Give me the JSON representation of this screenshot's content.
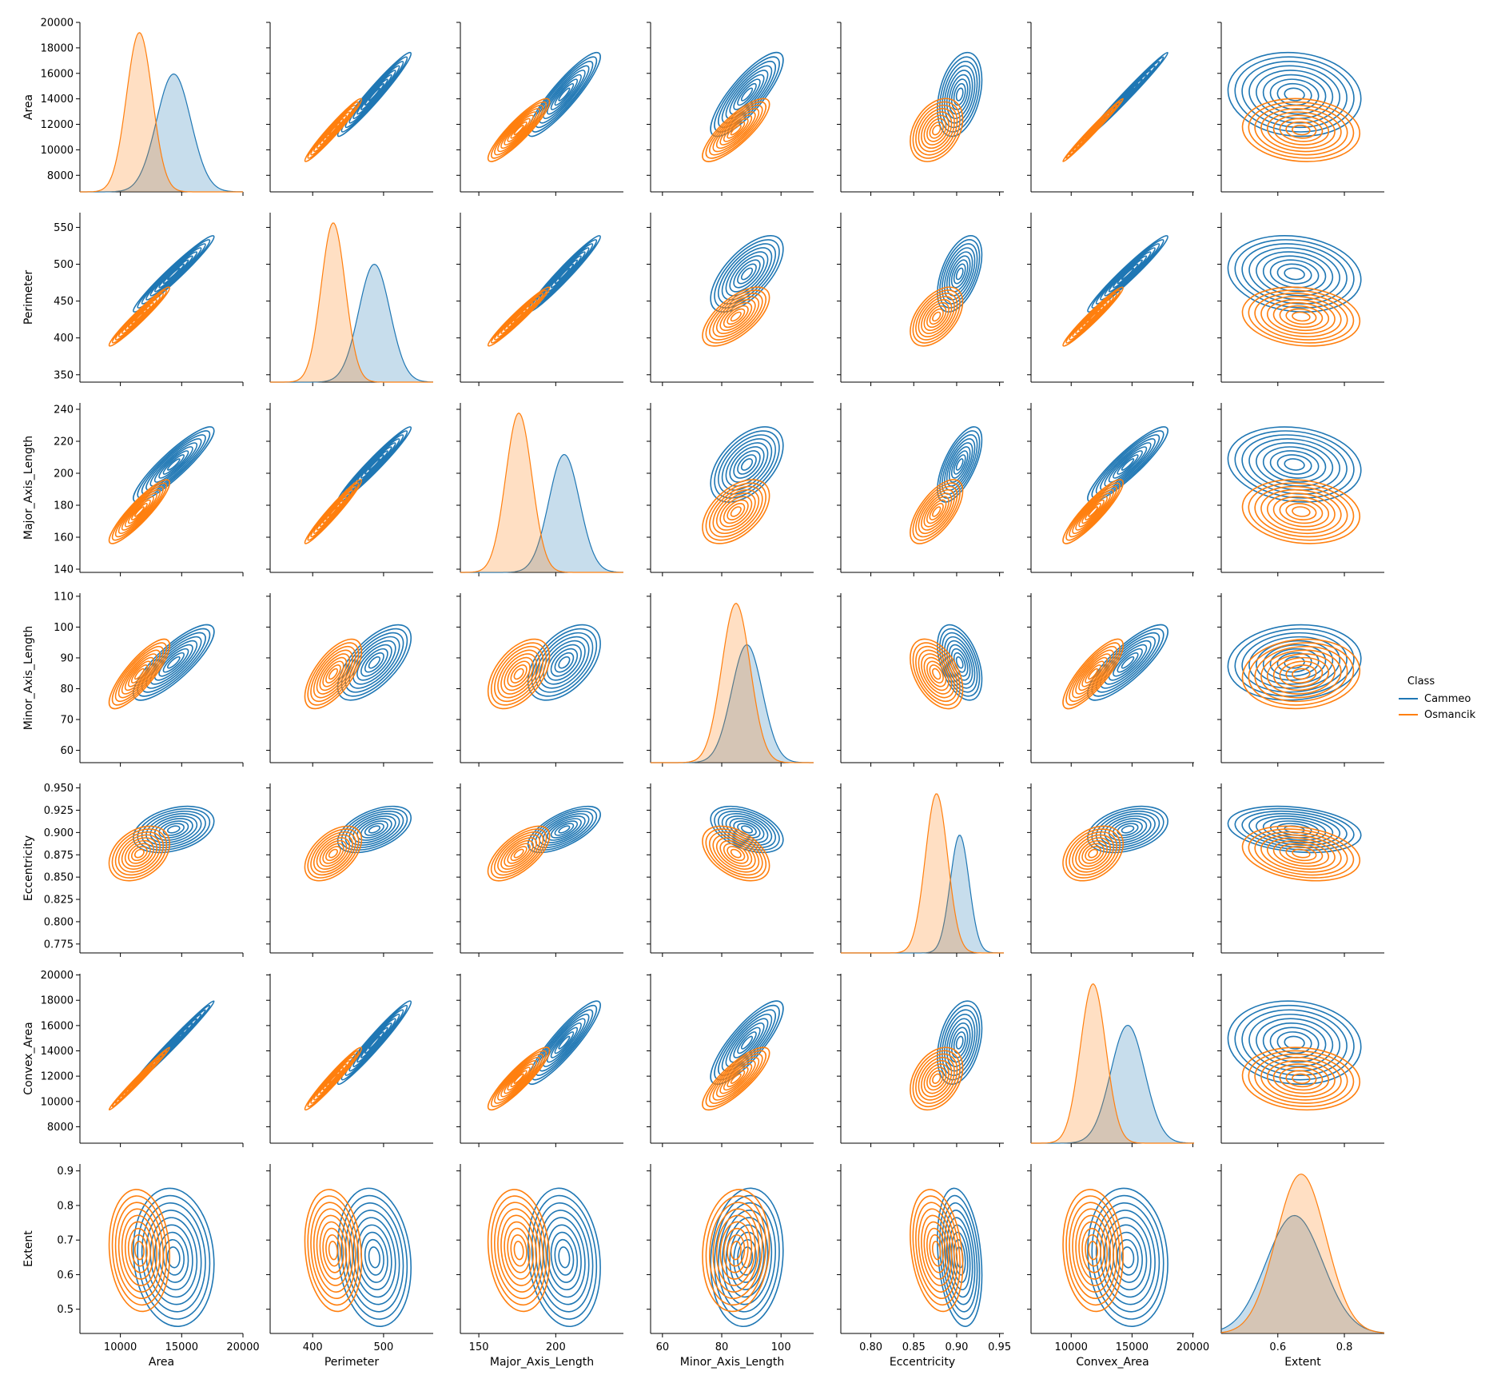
{
  "chart_data": {
    "type": "pairplot",
    "kind": "kde",
    "diagonal": "kde-filled",
    "variables": [
      {
        "name": "Area",
        "lim": [
          6700,
          20000
        ],
        "ticks": [
          8000,
          10000,
          12000,
          14000,
          16000,
          18000,
          20000
        ],
        "xticks": [
          10000,
          15000,
          20000
        ]
      },
      {
        "name": "Perimeter",
        "lim": [
          340,
          570
        ],
        "ticks": [
          350,
          400,
          450,
          500,
          550
        ],
        "xticks": [
          400,
          500
        ]
      },
      {
        "name": "Major_Axis_Length",
        "lim": [
          138,
          244
        ],
        "ticks": [
          140,
          160,
          180,
          200,
          220,
          240
        ],
        "xticks": [
          150,
          200
        ]
      },
      {
        "name": "Minor_Axis_Length",
        "lim": [
          56,
          111
        ],
        "ticks": [
          60,
          70,
          80,
          90,
          100,
          110
        ],
        "xticks": [
          60,
          80,
          100
        ]
      },
      {
        "name": "Eccentricity",
        "lim": [
          0.765,
          0.955
        ],
        "ticks": [
          0.775,
          0.8,
          0.825,
          0.85,
          0.875,
          0.9,
          0.925,
          0.95
        ],
        "xticks": [
          0.8,
          0.85,
          0.9,
          0.95
        ]
      },
      {
        "name": "Convex_Area",
        "lim": [
          6700,
          20100
        ],
        "ticks": [
          8000,
          10000,
          12000,
          14000,
          16000,
          18000,
          20000
        ],
        "xticks": [
          10000,
          15000,
          20000
        ]
      },
      {
        "name": "Extent",
        "lim": [
          0.43,
          0.92
        ],
        "ticks": [
          0.5,
          0.6,
          0.7,
          0.8,
          0.9
        ],
        "xticks": [
          0.6,
          0.8
        ]
      }
    ],
    "tick_labels": {
      "Area": [
        "8000",
        "10000",
        "12000",
        "14000",
        "16000",
        "18000",
        "20000"
      ],
      "Area_x": [
        "10000",
        "15000",
        "20000"
      ],
      "Perimeter": [
        "350",
        "400",
        "450",
        "500",
        "550"
      ],
      "Perimeter_x": [
        "400",
        "500"
      ],
      "Major_Axis_Length": [
        "140",
        "160",
        "180",
        "200",
        "220",
        "240"
      ],
      "Major_Axis_Length_x": [
        "150",
        "200"
      ],
      "Minor_Axis_Length": [
        "60",
        "70",
        "80",
        "90",
        "100",
        "110"
      ],
      "Minor_Axis_Length_x": [
        "60",
        "80",
        "100"
      ],
      "Eccentricity": [
        "0.775",
        "0.800",
        "0.825",
        "0.850",
        "0.875",
        "0.900",
        "0.925",
        "0.950"
      ],
      "Eccentricity_x": [
        "0.80",
        "0.85",
        "0.90",
        "0.95"
      ],
      "Convex_Area": [
        "8000",
        "10000",
        "12000",
        "14000",
        "16000",
        "18000",
        "20000"
      ],
      "Convex_Area_x": [
        "10000",
        "15000",
        "20000"
      ],
      "Extent": [
        "0.5",
        "0.6",
        "0.7",
        "0.8",
        "0.9"
      ],
      "Extent_x": [
        "0.6",
        "0.8"
      ]
    },
    "series": [
      {
        "name": "Cammeo",
        "color": "#1f77b4",
        "mean": [
          14350,
          487,
          205.5,
          88.5,
          0.9035,
          14650,
          0.65
        ],
        "std": [
          1400,
          22,
          10,
          5.2,
          0.011,
          1400,
          0.085
        ],
        "diag_peak_fraction": 0.74
      },
      {
        "name": "Osmancik",
        "color": "#ff7f0e",
        "mean": [
          11550,
          429,
          176,
          84.8,
          0.8765,
          11800,
          0.67
        ],
        "std": [
          1050,
          17,
          8.5,
          4.8,
          0.013,
          1050,
          0.075
        ],
        "diag_peak_fraction": 1.0
      }
    ],
    "correlations": [
      [
        1.0,
        0.97,
        0.9,
        0.82,
        0.35,
        0.99,
        -0.1
      ],
      [
        0.97,
        1.0,
        0.97,
        0.65,
        0.5,
        0.97,
        -0.15
      ],
      [
        0.9,
        0.97,
        1.0,
        0.5,
        0.65,
        0.9,
        -0.15
      ],
      [
        0.82,
        0.65,
        0.5,
        1.0,
        -0.45,
        0.82,
        0.1
      ],
      [
        0.35,
        0.5,
        0.65,
        -0.45,
        1.0,
        0.35,
        -0.25
      ],
      [
        0.99,
        0.97,
        0.9,
        0.82,
        0.35,
        1.0,
        -0.1
      ],
      [
        -0.1,
        -0.15,
        -0.15,
        0.1,
        -0.25,
        -0.1,
        1.0
      ]
    ],
    "legend": {
      "title": "Class",
      "placement": "right-center",
      "entries": [
        "Cammeo",
        "Osmancik"
      ]
    },
    "grid": false
  }
}
